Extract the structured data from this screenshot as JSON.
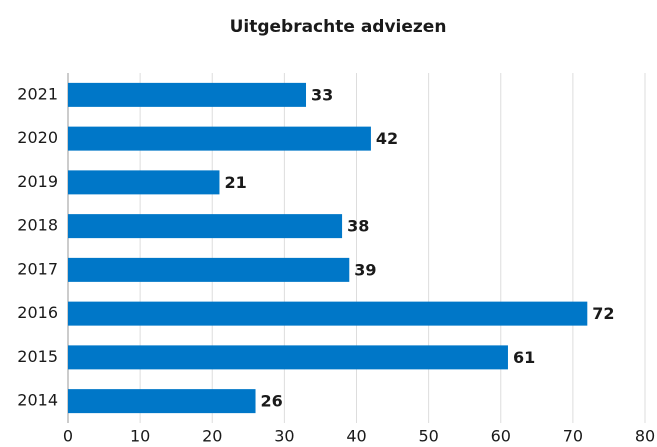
{
  "chart_data": {
    "type": "barh",
    "title": "Uitgebrachte adviezen",
    "categories": [
      "2021",
      "2020",
      "2019",
      "2018",
      "2017",
      "2016",
      "2015",
      "2014"
    ],
    "values": [
      33,
      42,
      21,
      38,
      39,
      72,
      61,
      26
    ],
    "color": "#0077c8",
    "xlim": [
      0,
      80
    ],
    "xticks": [
      0,
      10,
      20,
      30,
      40,
      50,
      60,
      70,
      80
    ],
    "grid": true
  }
}
